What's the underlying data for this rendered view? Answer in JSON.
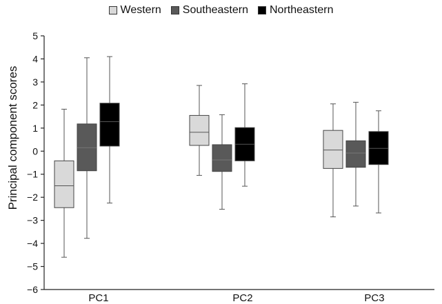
{
  "chart_data": {
    "type": "box",
    "title": "",
    "xlabel": "",
    "ylabel": "Principal component scores",
    "ylim": [
      -6,
      5
    ],
    "yticks": [
      "5",
      "4",
      "3",
      "2",
      "1",
      "0",
      "−1",
      "−2",
      "−3",
      "−4",
      "−5",
      "−6"
    ],
    "categories": [
      "PC1",
      "PC2",
      "PC3"
    ],
    "legend_position": "top-center",
    "grid": false,
    "series": [
      {
        "name": "Western",
        "color": "#d9d9d9",
        "boxes": [
          {
            "min": -4.6,
            "q1": -2.45,
            "median": -1.5,
            "q3": -0.42,
            "max": 1.82
          },
          {
            "min": -1.05,
            "q1": 0.25,
            "median": 0.82,
            "q3": 1.55,
            "max": 2.85
          },
          {
            "min": -2.85,
            "q1": -0.75,
            "median": 0.05,
            "q3": 0.9,
            "max": 2.05
          }
        ]
      },
      {
        "name": "Southeastern",
        "color": "#595959",
        "boxes": [
          {
            "min": -3.78,
            "q1": -0.85,
            "median": 0.15,
            "q3": 1.18,
            "max": 4.05
          },
          {
            "min": -2.52,
            "q1": -0.88,
            "median": -0.38,
            "q3": 0.28,
            "max": 1.58
          },
          {
            "min": -2.38,
            "q1": -0.7,
            "median": -0.08,
            "q3": 0.45,
            "max": 2.12
          }
        ]
      },
      {
        "name": "Northeastern",
        "color": "#000000",
        "boxes": [
          {
            "min": -2.25,
            "q1": 0.22,
            "median": 1.28,
            "q3": 2.08,
            "max": 4.1
          },
          {
            "min": -1.52,
            "q1": -0.42,
            "median": 0.3,
            "q3": 1.02,
            "max": 2.92
          },
          {
            "min": -2.68,
            "q1": -0.58,
            "median": 0.12,
            "q3": 0.85,
            "max": 1.75
          }
        ]
      }
    ]
  }
}
